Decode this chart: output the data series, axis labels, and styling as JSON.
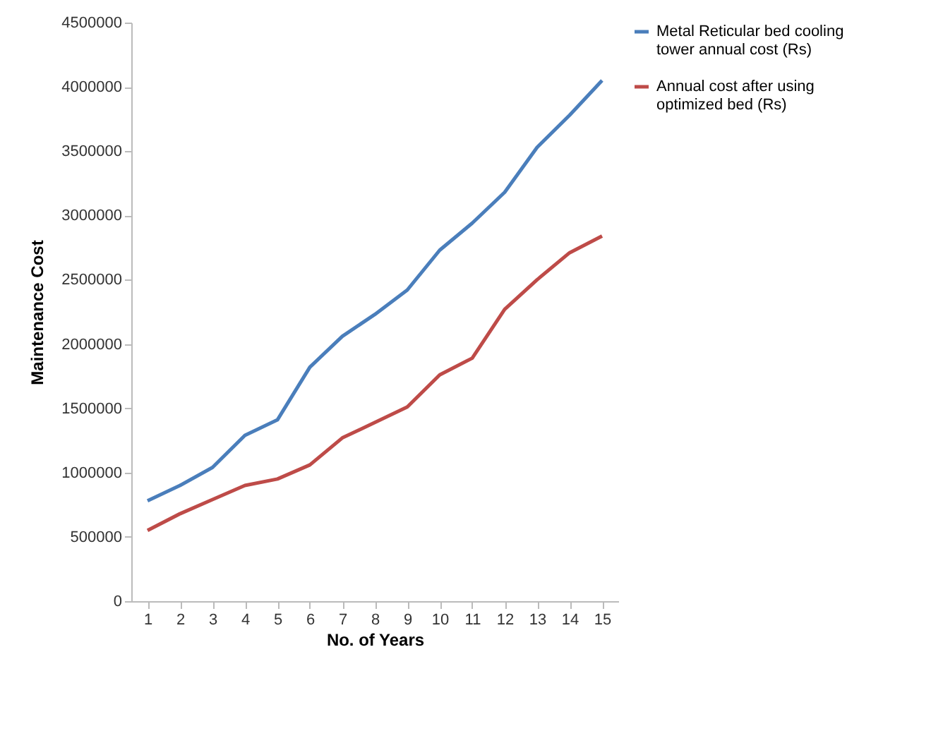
{
  "chart_data": {
    "type": "line",
    "xlabel": "No. of Years",
    "ylabel": "Maintenance Cost",
    "x": [
      1,
      2,
      3,
      4,
      5,
      6,
      7,
      8,
      9,
      10,
      11,
      12,
      13,
      14,
      15
    ],
    "series": [
      {
        "name": "Metal Reticular bed cooling tower annual cost (Rs)",
        "color": "#4a7ebb",
        "values": [
          780000,
          900000,
          1040000,
          1290000,
          1410000,
          1820000,
          2060000,
          2230000,
          2420000,
          2730000,
          2940000,
          3180000,
          3530000,
          3780000,
          4050000
        ]
      },
      {
        "name": "Annual cost after using optimized bed (Rs)",
        "color": "#be4b48",
        "values": [
          550000,
          680000,
          790000,
          900000,
          950000,
          1060000,
          1270000,
          1390000,
          1510000,
          1760000,
          1890000,
          2270000,
          2500000,
          2710000,
          2840000
        ]
      }
    ],
    "xlim": [
      0.5,
      15.5
    ],
    "xticks": [
      1,
      2,
      3,
      4,
      5,
      6,
      7,
      8,
      9,
      10,
      11,
      12,
      13,
      14,
      15
    ],
    "ylim": [
      0,
      4500000
    ],
    "yticks": [
      0,
      500000,
      1000000,
      1500000,
      2000000,
      2500000,
      3000000,
      3500000,
      4000000,
      4500000
    ],
    "grid": false,
    "legend": "right",
    "marker": "none",
    "line_style": "solid"
  }
}
